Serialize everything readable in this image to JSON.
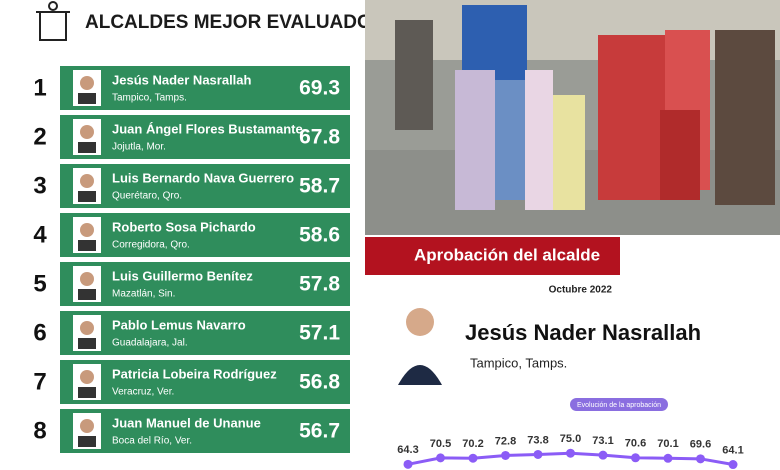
{
  "header": {
    "title": "ALCALDES MEJOR EVALUADOS"
  },
  "ranking": [
    {
      "rank": "1",
      "name": "Jesús Nader Nasrallah",
      "city": "Tampico, Tamps.",
      "score": "69.3"
    },
    {
      "rank": "2",
      "name": "Juan Ángel Flores Bustamante",
      "city": "Jojutla, Mor.",
      "score": "67.8"
    },
    {
      "rank": "3",
      "name": "Luis Bernardo Nava Guerrero",
      "city": "Querétaro, Qro.",
      "score": "58.7"
    },
    {
      "rank": "4",
      "name": "Roberto Sosa Pichardo",
      "city": "Corregidora, Qro.",
      "score": "58.6"
    },
    {
      "rank": "5",
      "name": "Luis Guillermo Benítez",
      "city": "Mazatlán, Sin.",
      "score": "57.8"
    },
    {
      "rank": "6",
      "name": "Pablo Lemus Navarro",
      "city": "Guadalajara, Jal.",
      "score": "57.1"
    },
    {
      "rank": "7",
      "name": "Patricia Lobeira Rodríguez",
      "city": "Veracruz, Ver.",
      "score": "56.8"
    },
    {
      "rank": "8",
      "name": "Juan Manuel de Unanue",
      "city": "Boca del Río, Ver.",
      "score": "56.7"
    }
  ],
  "chart_data": {
    "type": "line",
    "title": "Aprobación del alcalde",
    "subtitle": "Octubre 2022",
    "person": "Jesús Nader Nasrallah",
    "place": "Tampico, Tamps.",
    "series": [
      {
        "name": "Evolución de la aprobación",
        "color": "#8b5cf6",
        "values": [
          64.3,
          70.5,
          70.2,
          72.8,
          73.8,
          75.0,
          73.1,
          70.6,
          70.1,
          69.6,
          64.1
        ],
        "value_labels": [
          "64.3",
          "70.5",
          "70.2",
          "72.8",
          "73.8",
          "75.0",
          "73.1",
          "70.6",
          "70.1",
          "69.6",
          "64.1"
        ]
      }
    ],
    "ylim": [
      55,
      80
    ]
  }
}
